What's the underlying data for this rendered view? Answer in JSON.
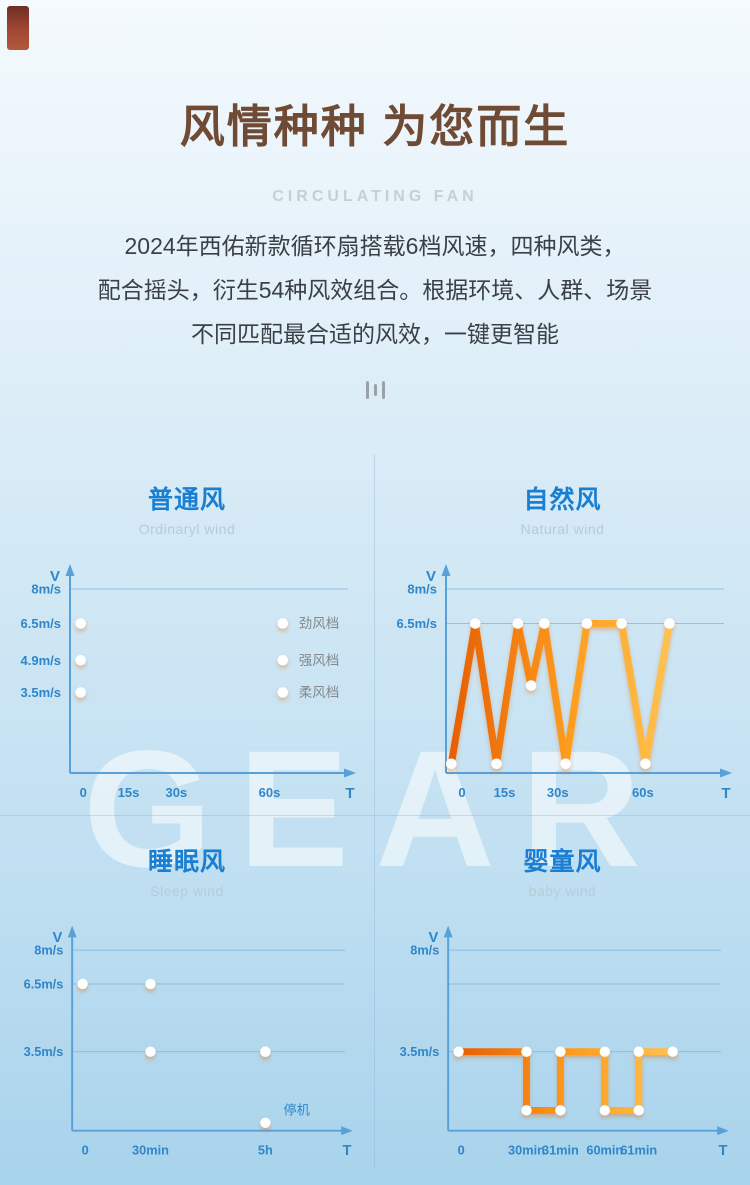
{
  "page": {
    "title": "风情种种 为您而生",
    "subtitle": "CIRCULATING FAN",
    "description_lines": [
      "2024年西佑新款循环扇搭载6档风速，四种风类，",
      "配合摇头，衍生54种风效组合。根据环境、人群、场景",
      "不同匹配最合适的风效，一键更智能"
    ],
    "watermark": "GEAR"
  },
  "colors": {
    "title": "#6f4b35",
    "subtitle": "#c8ced3",
    "body_text": "#3b4046",
    "chart_title": "#1a7ed2",
    "chart_subtitle": "#b6cbd8",
    "axis": "#58a0d8",
    "tick": "#2f86c9",
    "line_start": "#e65f04",
    "line_mid": "#ff9d1f",
    "line_end": "#ffc24f",
    "series_label": "#84878b",
    "watermark": "rgba(255,255,255,0.55)",
    "corner_ribbon": "#a24734",
    "background_top": "#f4fafd",
    "background_bottom": "#a8d3ec"
  },
  "chart_data": [
    {
      "type": "line",
      "title": "普通风",
      "subtitle": "Ordinaryl wind",
      "ylabel": "V",
      "xlabel": "T",
      "ylim": [
        0,
        8
      ],
      "yticks": [
        {
          "label": "8m/s",
          "value": 8
        },
        {
          "label": "6.5m/s",
          "value": 6.5
        },
        {
          "label": "4.9m/s",
          "value": 4.9
        },
        {
          "label": "3.5m/s",
          "value": 3.5
        }
      ],
      "gridlines": [
        8
      ],
      "xticks": [
        {
          "label": "0",
          "t": 0.05
        },
        {
          "label": "15s",
          "t": 0.22
        },
        {
          "label": "30s",
          "t": 0.4
        },
        {
          "label": "60s",
          "t": 0.75
        }
      ],
      "series": [
        {
          "name": "劲风档",
          "dashed": false,
          "dots": true,
          "label_t": 0.86,
          "points": [
            [
              0.04,
              6.5
            ],
            [
              0.8,
              6.5
            ]
          ]
        },
        {
          "name": "强风档",
          "dashed": false,
          "dots": true,
          "label_t": 0.86,
          "points": [
            [
              0.04,
              4.9
            ],
            [
              0.8,
              4.9
            ]
          ]
        },
        {
          "name": "柔风档",
          "dashed": false,
          "dots": true,
          "label_t": 0.86,
          "points": [
            [
              0.04,
              3.5
            ],
            [
              0.8,
              3.5
            ]
          ]
        }
      ],
      "annotations": []
    },
    {
      "type": "line",
      "title": "自然风",
      "subtitle": "Natural wind",
      "ylabel": "V",
      "xlabel": "T",
      "ylim": [
        0,
        8
      ],
      "yticks": [
        {
          "label": "8m/s",
          "value": 8
        },
        {
          "label": "6.5m/s",
          "value": 6.5
        }
      ],
      "gridlines": [
        8,
        6.5
      ],
      "xticks": [
        {
          "label": "0",
          "t": 0.06
        },
        {
          "label": "15s",
          "t": 0.22
        },
        {
          "label": "30s",
          "t": 0.42
        },
        {
          "label": "60s",
          "t": 0.74
        }
      ],
      "series": [
        {
          "dashed": false,
          "dots": true,
          "points": [
            [
              0.02,
              0.4
            ],
            [
              0.11,
              6.5
            ],
            [
              0.19,
              0.4
            ],
            [
              0.27,
              6.5
            ],
            [
              0.32,
              3.8
            ],
            [
              0.37,
              6.5
            ],
            [
              0.45,
              0.4
            ],
            [
              0.53,
              6.5
            ],
            [
              0.66,
              6.5
            ],
            [
              0.75,
              0.4
            ],
            [
              0.84,
              6.5
            ]
          ]
        }
      ],
      "annotations": []
    },
    {
      "type": "line",
      "title": "睡眠风",
      "subtitle": "Sleep wind",
      "ylabel": "V",
      "xlabel": "T",
      "ylim": [
        0,
        8
      ],
      "yticks": [
        {
          "label": "8m/s",
          "value": 8
        },
        {
          "label": "6.5m/s",
          "value": 6.5
        },
        {
          "label": "3.5m/s",
          "value": 3.5
        }
      ],
      "gridlines": [
        8,
        6.5,
        3.5
      ],
      "xticks": [
        {
          "label": "0",
          "t": 0.05
        },
        {
          "label": "30min",
          "t": 0.3
        },
        {
          "label": "5h",
          "t": 0.74
        }
      ],
      "series": [
        {
          "dashed": false,
          "dots": true,
          "points": [
            [
              0.04,
              6.5
            ],
            [
              0.3,
              6.5
            ]
          ]
        },
        {
          "dashed": true,
          "dots": false,
          "points": [
            [
              0.3,
              6.5
            ],
            [
              0.3,
              0.35
            ]
          ]
        },
        {
          "dashed": false,
          "dots": true,
          "points": [
            [
              0.3,
              3.5
            ],
            [
              0.74,
              3.5
            ]
          ]
        },
        {
          "dashed": false,
          "dots": true,
          "points": [
            [
              0.74,
              3.5
            ],
            [
              0.74,
              0.35
            ]
          ]
        }
      ],
      "annotations": [
        {
          "text": "停机",
          "t": 0.86,
          "value": 0.9
        }
      ]
    },
    {
      "type": "line",
      "title": "婴童风",
      "subtitle": "baby wind",
      "ylabel": "V",
      "xlabel": "T",
      "ylim": [
        0,
        8
      ],
      "yticks": [
        {
          "label": "8m/s",
          "value": 8
        },
        {
          "label": "3.5m/s",
          "value": 3.5
        }
      ],
      "gridlines": [
        8,
        6.5,
        3.5
      ],
      "xticks": [
        {
          "label": "0",
          "t": 0.05
        },
        {
          "label": "30min",
          "t": 0.3
        },
        {
          "label": "31min",
          "t": 0.43
        },
        {
          "label": "60min",
          "t": 0.6
        },
        {
          "label": "61min",
          "t": 0.73
        }
      ],
      "series": [
        {
          "dashed": false,
          "dots": true,
          "points": [
            [
              0.04,
              3.5
            ],
            [
              0.3,
              3.5
            ],
            [
              0.3,
              0.9
            ],
            [
              0.43,
              0.9
            ],
            [
              0.43,
              3.5
            ],
            [
              0.6,
              3.5
            ],
            [
              0.6,
              0.9
            ],
            [
              0.73,
              0.9
            ],
            [
              0.73,
              3.5
            ],
            [
              0.86,
              3.5
            ]
          ]
        }
      ],
      "annotations": []
    }
  ]
}
